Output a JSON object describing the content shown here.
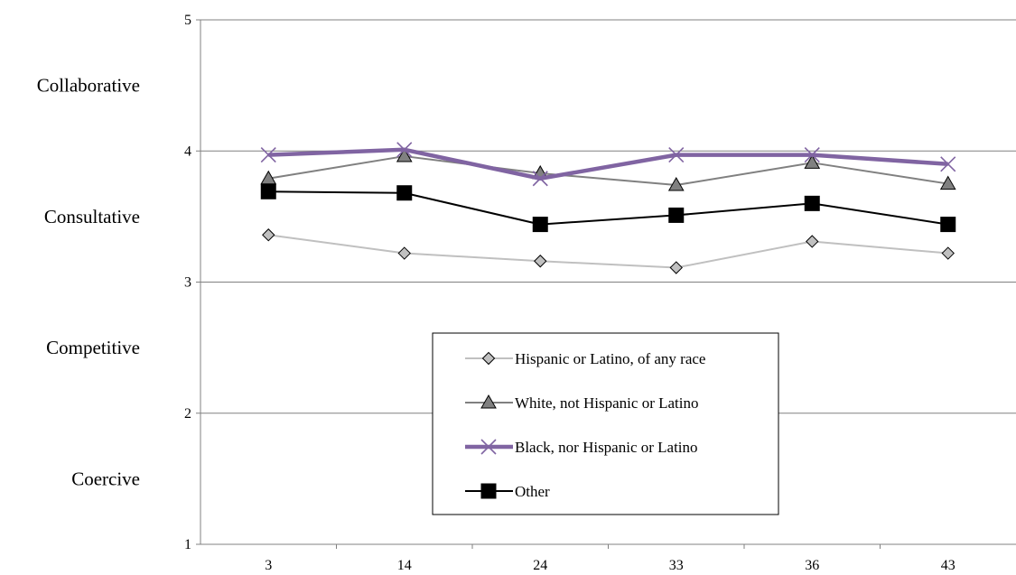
{
  "chart_data": {
    "type": "line",
    "title": "",
    "xlabel": "",
    "ylabel": "",
    "categories": [
      "3",
      "14",
      "24",
      "33",
      "36",
      "43"
    ],
    "ylim": [
      1,
      5
    ],
    "yticks": [
      "1",
      "2",
      "3",
      "4",
      "5"
    ],
    "y_bands": [
      {
        "label": "Collaborative",
        "value": 4.5
      },
      {
        "label": "Consultative",
        "value": 3.5
      },
      {
        "label": "Competitive",
        "value": 2.5
      },
      {
        "label": "Coercive",
        "value": 1.5
      }
    ],
    "grid": "horizontal",
    "legend_position": "center",
    "series": [
      {
        "name": "Hispanic or Latino, of any race",
        "values": [
          3.36,
          3.22,
          3.16,
          3.11,
          3.31,
          3.22
        ],
        "color": "#c0c0c0",
        "marker": "diamond",
        "marker_fill": "#c0c0c0",
        "line_width": 2
      },
      {
        "name": "White, not Hispanic or Latino",
        "values": [
          3.79,
          3.96,
          3.83,
          3.74,
          3.91,
          3.75
        ],
        "color": "#808080",
        "marker": "triangle",
        "marker_fill": "#808080",
        "line_width": 2
      },
      {
        "name": "Black, nor Hispanic or Latino",
        "values": [
          3.97,
          4.01,
          3.79,
          3.97,
          3.97,
          3.9
        ],
        "color": "#8064a2",
        "marker": "x",
        "marker_fill": "#8064a2",
        "line_width": 4.5
      },
      {
        "name": "Other",
        "values": [
          3.69,
          3.68,
          3.44,
          3.51,
          3.6,
          3.44
        ],
        "color": "#000000",
        "marker": "square",
        "marker_fill": "#000000",
        "line_width": 2
      }
    ]
  }
}
